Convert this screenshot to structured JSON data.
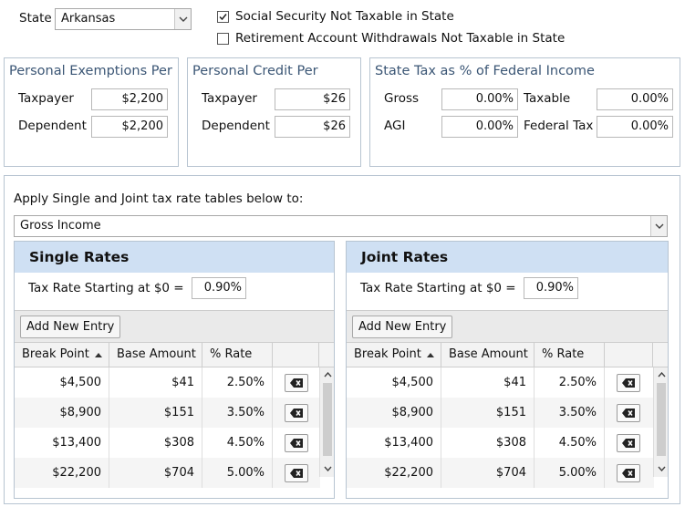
{
  "top": {
    "state_label": "State",
    "state_value": "Arkansas",
    "checkbox_social_security": {
      "label": "Social Security Not Taxable in State",
      "checked": true
    },
    "checkbox_retirement": {
      "label": "Retirement Account Withdrawals Not Taxable in State",
      "checked": false
    }
  },
  "personal_exemptions": {
    "title": "Personal Exemptions Per",
    "taxpayer_label": "Taxpayer",
    "taxpayer_value": "$2,200",
    "dependent_label": "Dependent",
    "dependent_value": "$2,200"
  },
  "personal_credit": {
    "title": "Personal Credit Per",
    "taxpayer_label": "Taxpayer",
    "taxpayer_value": "$26",
    "dependent_label": "Dependent",
    "dependent_value": "$26"
  },
  "state_tax_pct": {
    "title": "State Tax as % of Federal Income",
    "gross_label": "Gross",
    "gross_value": "0.00%",
    "taxable_label": "Taxable",
    "taxable_value": "0.00%",
    "agi_label": "AGI",
    "agi_value": "0.00%",
    "federal_tax_label": "Federal Tax",
    "federal_tax_value": "0.00%"
  },
  "apply": {
    "label": "Apply Single and Joint tax rate tables below to:",
    "selected": "Gross Income"
  },
  "single": {
    "title": "Single Rates",
    "start_label": "Tax Rate Starting at $0 =",
    "start_value": "0.90%",
    "add_button": "Add New Entry",
    "columns": [
      "Break Point",
      "Base Amount",
      "% Rate"
    ],
    "rows": [
      [
        "$4,500",
        "$41",
        "2.50%"
      ],
      [
        "$8,900",
        "$151",
        "3.50%"
      ],
      [
        "$13,400",
        "$308",
        "4.50%"
      ],
      [
        "$22,200",
        "$704",
        "5.00%"
      ]
    ]
  },
  "joint": {
    "title": "Joint Rates",
    "start_label": "Tax Rate Starting at $0 =",
    "start_value": "0.90%",
    "add_button": "Add New Entry",
    "columns": [
      "Break Point",
      "Base Amount",
      "% Rate"
    ],
    "rows": [
      [
        "$4,500",
        "$41",
        "2.50%"
      ],
      [
        "$8,900",
        "$151",
        "3.50%"
      ],
      [
        "$13,400",
        "$308",
        "4.50%"
      ],
      [
        "$22,200",
        "$704",
        "5.00%"
      ]
    ]
  },
  "icons": {
    "dropdown": "chevron-down-icon",
    "checkbox": "checkmark-icon",
    "sort": "sort-ascending-icon",
    "delete": "backspace-delete-icon",
    "scroll_up": "scroll-up-arrow-icon",
    "scroll_down": "scroll-down-arrow-icon"
  }
}
